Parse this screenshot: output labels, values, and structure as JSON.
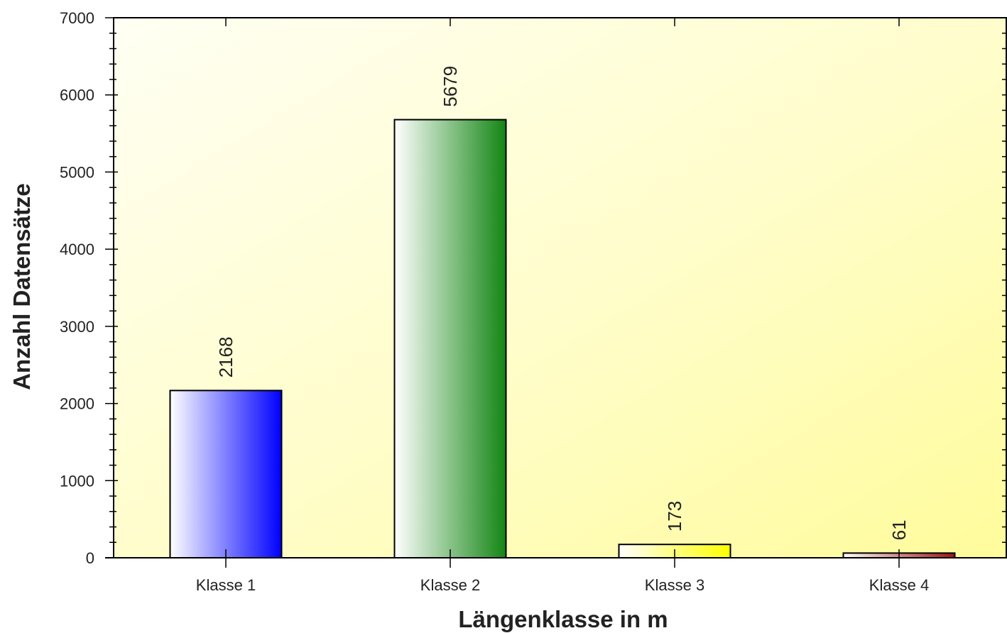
{
  "chart_data": {
    "type": "bar",
    "categories": [
      "Klasse 1",
      "Klasse 2",
      "Klasse 3",
      "Klasse 4"
    ],
    "values": [
      2168,
      5679,
      173,
      61
    ],
    "value_labels": [
      "2168",
      "5679",
      "173",
      "61"
    ],
    "title": "",
    "xlabel": "Längenklasse in m",
    "ylabel": "Anzahl Datensätze",
    "ylim": [
      0,
      7000
    ],
    "yticks": [
      0,
      1000,
      2000,
      3000,
      4000,
      5000,
      6000,
      7000
    ],
    "ytick_labels": [
      "0",
      "1000",
      "2000",
      "3000",
      "4000",
      "5000",
      "6000",
      "7000"
    ],
    "grid": false,
    "legend": "none",
    "bar_colors": [
      "#0000ff",
      "#138613",
      "#ffff00",
      "#a01414"
    ],
    "plot_background": "#fffca0"
  }
}
